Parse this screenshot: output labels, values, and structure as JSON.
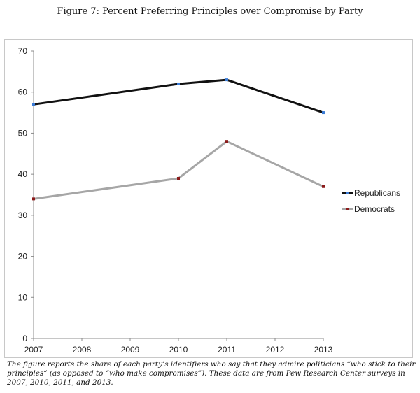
{
  "chart_data": {
    "type": "line",
    "title": "Figure 7: Percent Preferring Principles over Compromise by Party",
    "xlabel": "",
    "ylabel": "",
    "x_ticks": [
      2007,
      2008,
      2009,
      2010,
      2011,
      2012,
      2013
    ],
    "xlim": [
      2007,
      2013
    ],
    "y_ticks": [
      0,
      10,
      20,
      30,
      40,
      50,
      60,
      70
    ],
    "ylim": [
      0,
      70
    ],
    "grid": false,
    "legend_position": "right",
    "series": [
      {
        "name": "Republicans",
        "color": "#111111",
        "marker_color": "#3a7bd5",
        "x": [
          2007,
          2010,
          2011,
          2013
        ],
        "values": [
          57,
          62,
          63,
          55
        ]
      },
      {
        "name": "Democrats",
        "color": "#a6a6a6",
        "marker_color": "#8b1a1a",
        "x": [
          2007,
          2010,
          2011,
          2013
        ],
        "values": [
          34,
          39,
          48,
          37
        ]
      }
    ]
  },
  "caption": "The figure reports the share of each party’s identifiers who say that they admire politicians “who stick to their principles” (as opposed to “who make compromises”). These data are from Pew Research Center surveys in 2007, 2010, 2011, and 2013."
}
